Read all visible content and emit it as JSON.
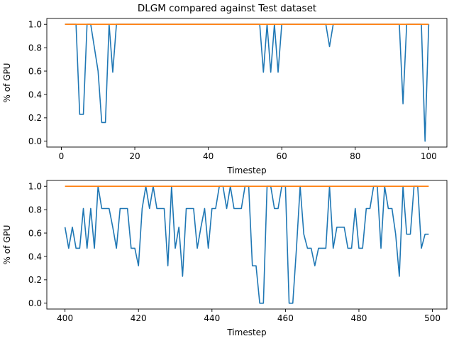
{
  "title": "DLGM compared against Test dataset",
  "colors": {
    "predicted": "#1f77b4",
    "actual": "#ff7f0e"
  },
  "chart_data": [
    {
      "type": "line",
      "xlabel": "Timestep",
      "ylabel": "% of GPU",
      "xlim": [
        -3.95,
        104.95
      ],
      "ylim": [
        -0.05,
        1.05
      ],
      "xticks": [
        0,
        20,
        40,
        60,
        80,
        100
      ],
      "yticks": [
        0.0,
        0.2,
        0.4,
        0.6,
        0.8,
        1.0
      ],
      "xtick_labels": [
        "0",
        "20",
        "40",
        "60",
        "80",
        "100"
      ],
      "ytick_labels": [
        "0.0",
        "0.2",
        "0.4",
        "0.6",
        "0.8",
        "1.0"
      ],
      "grid": false,
      "x": [
        1,
        2,
        3,
        4,
        5,
        6,
        7,
        8,
        9,
        10,
        11,
        12,
        13,
        14,
        15,
        16,
        17,
        18,
        19,
        20,
        21,
        22,
        23,
        24,
        25,
        26,
        27,
        28,
        29,
        30,
        31,
        32,
        33,
        34,
        35,
        36,
        37,
        38,
        39,
        40,
        41,
        42,
        43,
        44,
        45,
        46,
        47,
        48,
        49,
        50,
        51,
        52,
        53,
        54,
        55,
        56,
        57,
        58,
        59,
        60,
        61,
        62,
        63,
        64,
        65,
        66,
        67,
        68,
        69,
        70,
        71,
        72,
        73,
        74,
        75,
        76,
        77,
        78,
        79,
        80,
        81,
        82,
        83,
        84,
        85,
        86,
        87,
        88,
        89,
        90,
        91,
        92,
        93,
        94,
        95,
        96,
        97,
        98,
        99,
        100
      ],
      "series": [
        {
          "color": "#1f77b4",
          "values": [
            1,
            1,
            1,
            1,
            0.23,
            0.23,
            1,
            1,
            0.8,
            0.6,
            0.16,
            0.16,
            1,
            0.59,
            1,
            1,
            1,
            1,
            1,
            1,
            1,
            1,
            1,
            1,
            1,
            1,
            1,
            1,
            1,
            1,
            1,
            1,
            1,
            1,
            1,
            1,
            1,
            1,
            1,
            1,
            1,
            1,
            1,
            1,
            1,
            1,
            1,
            1,
            1,
            1,
            1,
            1,
            1,
            1,
            0.59,
            1,
            0.59,
            1,
            0.59,
            1,
            1,
            1,
            1,
            1,
            1,
            1,
            1,
            1,
            1,
            1,
            1,
            1,
            0.81,
            1,
            1,
            1,
            1,
            1,
            1,
            1,
            1,
            1,
            1,
            1,
            1,
            1,
            1,
            1,
            1,
            1,
            1,
            1,
            0.32,
            1,
            1,
            1,
            1,
            1,
            0,
            1
          ]
        },
        {
          "color": "#ff7f0e",
          "values": [
            1,
            1,
            1,
            1,
            1,
            1,
            1,
            1,
            1,
            1,
            1,
            1,
            1,
            1,
            1,
            1,
            1,
            1,
            1,
            1,
            1,
            1,
            1,
            1,
            1,
            1,
            1,
            1,
            1,
            1,
            1,
            1,
            1,
            1,
            1,
            1,
            1,
            1,
            1,
            1,
            1,
            1,
            1,
            1,
            1,
            1,
            1,
            1,
            1,
            1,
            1,
            1,
            1,
            1,
            1,
            1,
            1,
            1,
            1,
            1,
            1,
            1,
            1,
            1,
            1,
            1,
            1,
            1,
            1,
            1,
            1,
            1,
            1,
            1,
            1,
            1,
            1,
            1,
            1,
            1,
            1,
            1,
            1,
            1,
            1,
            1,
            1,
            1,
            1,
            1,
            1,
            1,
            1,
            1,
            1,
            1,
            1,
            1,
            1,
            1
          ]
        }
      ]
    },
    {
      "type": "line",
      "xlabel": "Timestep",
      "ylabel": "% of GPU",
      "xlim": [
        395.05,
        503.95
      ],
      "ylim": [
        -0.05,
        1.05
      ],
      "xticks": [
        400,
        420,
        440,
        460,
        480,
        500
      ],
      "yticks": [
        0.0,
        0.2,
        0.4,
        0.6,
        0.8,
        1.0
      ],
      "xtick_labels": [
        "400",
        "420",
        "440",
        "460",
        "480",
        "500"
      ],
      "ytick_labels": [
        "0.0",
        "0.2",
        "0.4",
        "0.6",
        "0.8",
        "1.0"
      ],
      "grid": false,
      "x": [
        400,
        401,
        402,
        403,
        404,
        405,
        406,
        407,
        408,
        409,
        410,
        411,
        412,
        413,
        414,
        415,
        416,
        417,
        418,
        419,
        420,
        421,
        422,
        423,
        424,
        425,
        426,
        427,
        428,
        429,
        430,
        431,
        432,
        433,
        434,
        435,
        436,
        437,
        438,
        439,
        440,
        441,
        442,
        443,
        444,
        445,
        446,
        447,
        448,
        449,
        450,
        451,
        452,
        453,
        454,
        455,
        456,
        457,
        458,
        459,
        460,
        461,
        462,
        463,
        464,
        465,
        466,
        467,
        468,
        469,
        470,
        471,
        472,
        473,
        474,
        475,
        476,
        477,
        478,
        479,
        480,
        481,
        482,
        483,
        484,
        485,
        486,
        487,
        488,
        489,
        490,
        491,
        492,
        493,
        494,
        495,
        496,
        497,
        498,
        499
      ],
      "series": [
        {
          "color": "#1f77b4",
          "values": [
            0.65,
            0.47,
            0.65,
            0.47,
            0.47,
            0.81,
            0.47,
            0.81,
            0.47,
            1,
            0.81,
            0.81,
            0.81,
            0.65,
            0.47,
            0.81,
            0.81,
            0.81,
            0.47,
            0.47,
            0.32,
            0.81,
            1,
            0.81,
            1,
            0.81,
            0.81,
            0.81,
            0.32,
            1,
            0.47,
            0.65,
            0.23,
            0.81,
            0.81,
            0.81,
            0.47,
            0.65,
            0.81,
            0.47,
            0.81,
            0.81,
            1,
            1,
            0.81,
            1,
            0.81,
            0.81,
            0.81,
            1,
            1,
            0.32,
            0.32,
            0,
            0,
            1,
            1,
            0.81,
            0.81,
            1,
            1,
            0,
            0,
            0.47,
            1,
            0.59,
            0.47,
            0.47,
            0.32,
            0.47,
            0.47,
            0.47,
            1,
            0.47,
            0.65,
            0.65,
            0.65,
            0.47,
            0.47,
            0.81,
            0.47,
            0.47,
            0.81,
            0.81,
            1,
            1,
            0.47,
            1,
            0.81,
            0.81,
            0.59,
            0.23,
            1,
            0.59,
            0.59,
            1,
            1,
            0.47,
            0.59,
            0.59
          ]
        },
        {
          "color": "#ff7f0e",
          "values": [
            1,
            1,
            1,
            1,
            1,
            1,
            1,
            1,
            1,
            1,
            1,
            1,
            1,
            1,
            1,
            1,
            1,
            1,
            1,
            1,
            1,
            1,
            1,
            1,
            1,
            1,
            1,
            1,
            1,
            1,
            1,
            1,
            1,
            1,
            1,
            1,
            1,
            1,
            1,
            1,
            1,
            1,
            1,
            1,
            1,
            1,
            1,
            1,
            1,
            1,
            1,
            1,
            1,
            1,
            1,
            1,
            1,
            1,
            1,
            1,
            1,
            1,
            1,
            1,
            1,
            1,
            1,
            1,
            1,
            1,
            1,
            1,
            1,
            1,
            1,
            1,
            1,
            1,
            1,
            1,
            1,
            1,
            1,
            1,
            1,
            1,
            1,
            1,
            1,
            1,
            1,
            1,
            1,
            1,
            1,
            1,
            1,
            1,
            1,
            1
          ]
        }
      ]
    }
  ]
}
